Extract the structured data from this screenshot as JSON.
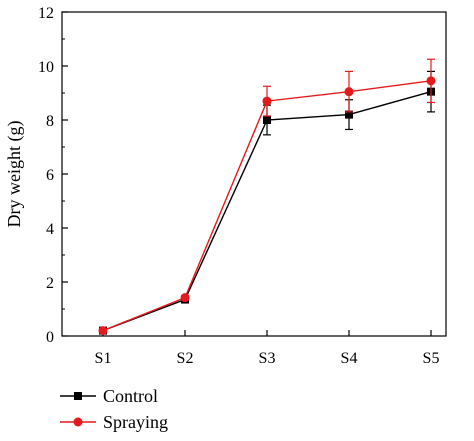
{
  "chart_data": {
    "type": "line",
    "title": "",
    "xlabel": "",
    "ylabel": "Dry weight (g)",
    "categories": [
      "S1",
      "S2",
      "S3",
      "S4",
      "S5"
    ],
    "ylim": [
      0,
      12
    ],
    "yticks": [
      "0",
      "2",
      "4",
      "6",
      "8",
      "10",
      "12"
    ],
    "grid": false,
    "legend_position": "bottom-left",
    "series": [
      {
        "name": "Control",
        "color": "#000000",
        "marker": "square",
        "values": [
          0.2,
          1.35,
          8.0,
          8.2,
          9.05
        ],
        "errors": [
          0.05,
          0.08,
          0.55,
          0.55,
          0.75
        ]
      },
      {
        "name": "Spraying",
        "color": "#e41a1c",
        "marker": "circle",
        "values": [
          0.2,
          1.42,
          8.7,
          9.05,
          9.45
        ],
        "errors": [
          0.05,
          0.08,
          0.55,
          0.75,
          0.8
        ]
      }
    ]
  }
}
